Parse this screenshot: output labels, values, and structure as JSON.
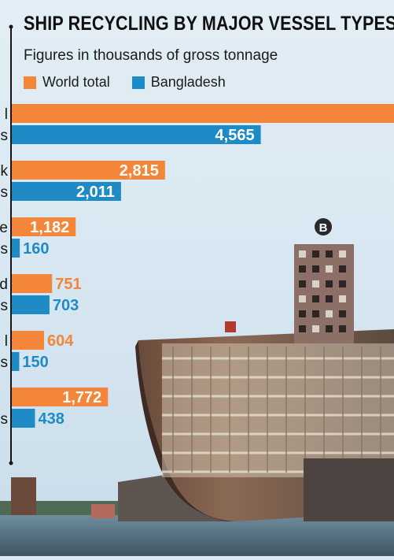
{
  "colors": {
    "world": "#f4863a",
    "bangladesh": "#1e8bc7",
    "background": "#dbe9f3",
    "axis": "#151515"
  },
  "logo_text": "B",
  "chart_data": {
    "type": "bar",
    "orientation": "horizontal",
    "title": "SHIP RECYCLING BY MAJOR VESSEL TYPES,",
    "subtitle": "Figures in thousands of gross tonnage",
    "categories": [
      "l",
      "k",
      "e",
      "d",
      "l",
      ""
    ],
    "category_suffix": [
      "s",
      "s",
      "s",
      "s",
      "s",
      "s"
    ],
    "series": [
      {
        "name": "World total",
        "values": [
          null,
          2815,
          1182,
          751,
          604,
          1772
        ],
        "labels": [
          "",
          "2,815",
          "1,182",
          "751",
          "604",
          "1,772"
        ]
      },
      {
        "name": "Bangladesh",
        "values": [
          4565,
          2011,
          160,
          703,
          150,
          438
        ],
        "labels": [
          "4,565",
          "2,011",
          "160",
          "703",
          "150",
          "438"
        ]
      }
    ],
    "legend_position": "top-left",
    "grid": false,
    "xlim": [
      0,
      7000
    ]
  }
}
